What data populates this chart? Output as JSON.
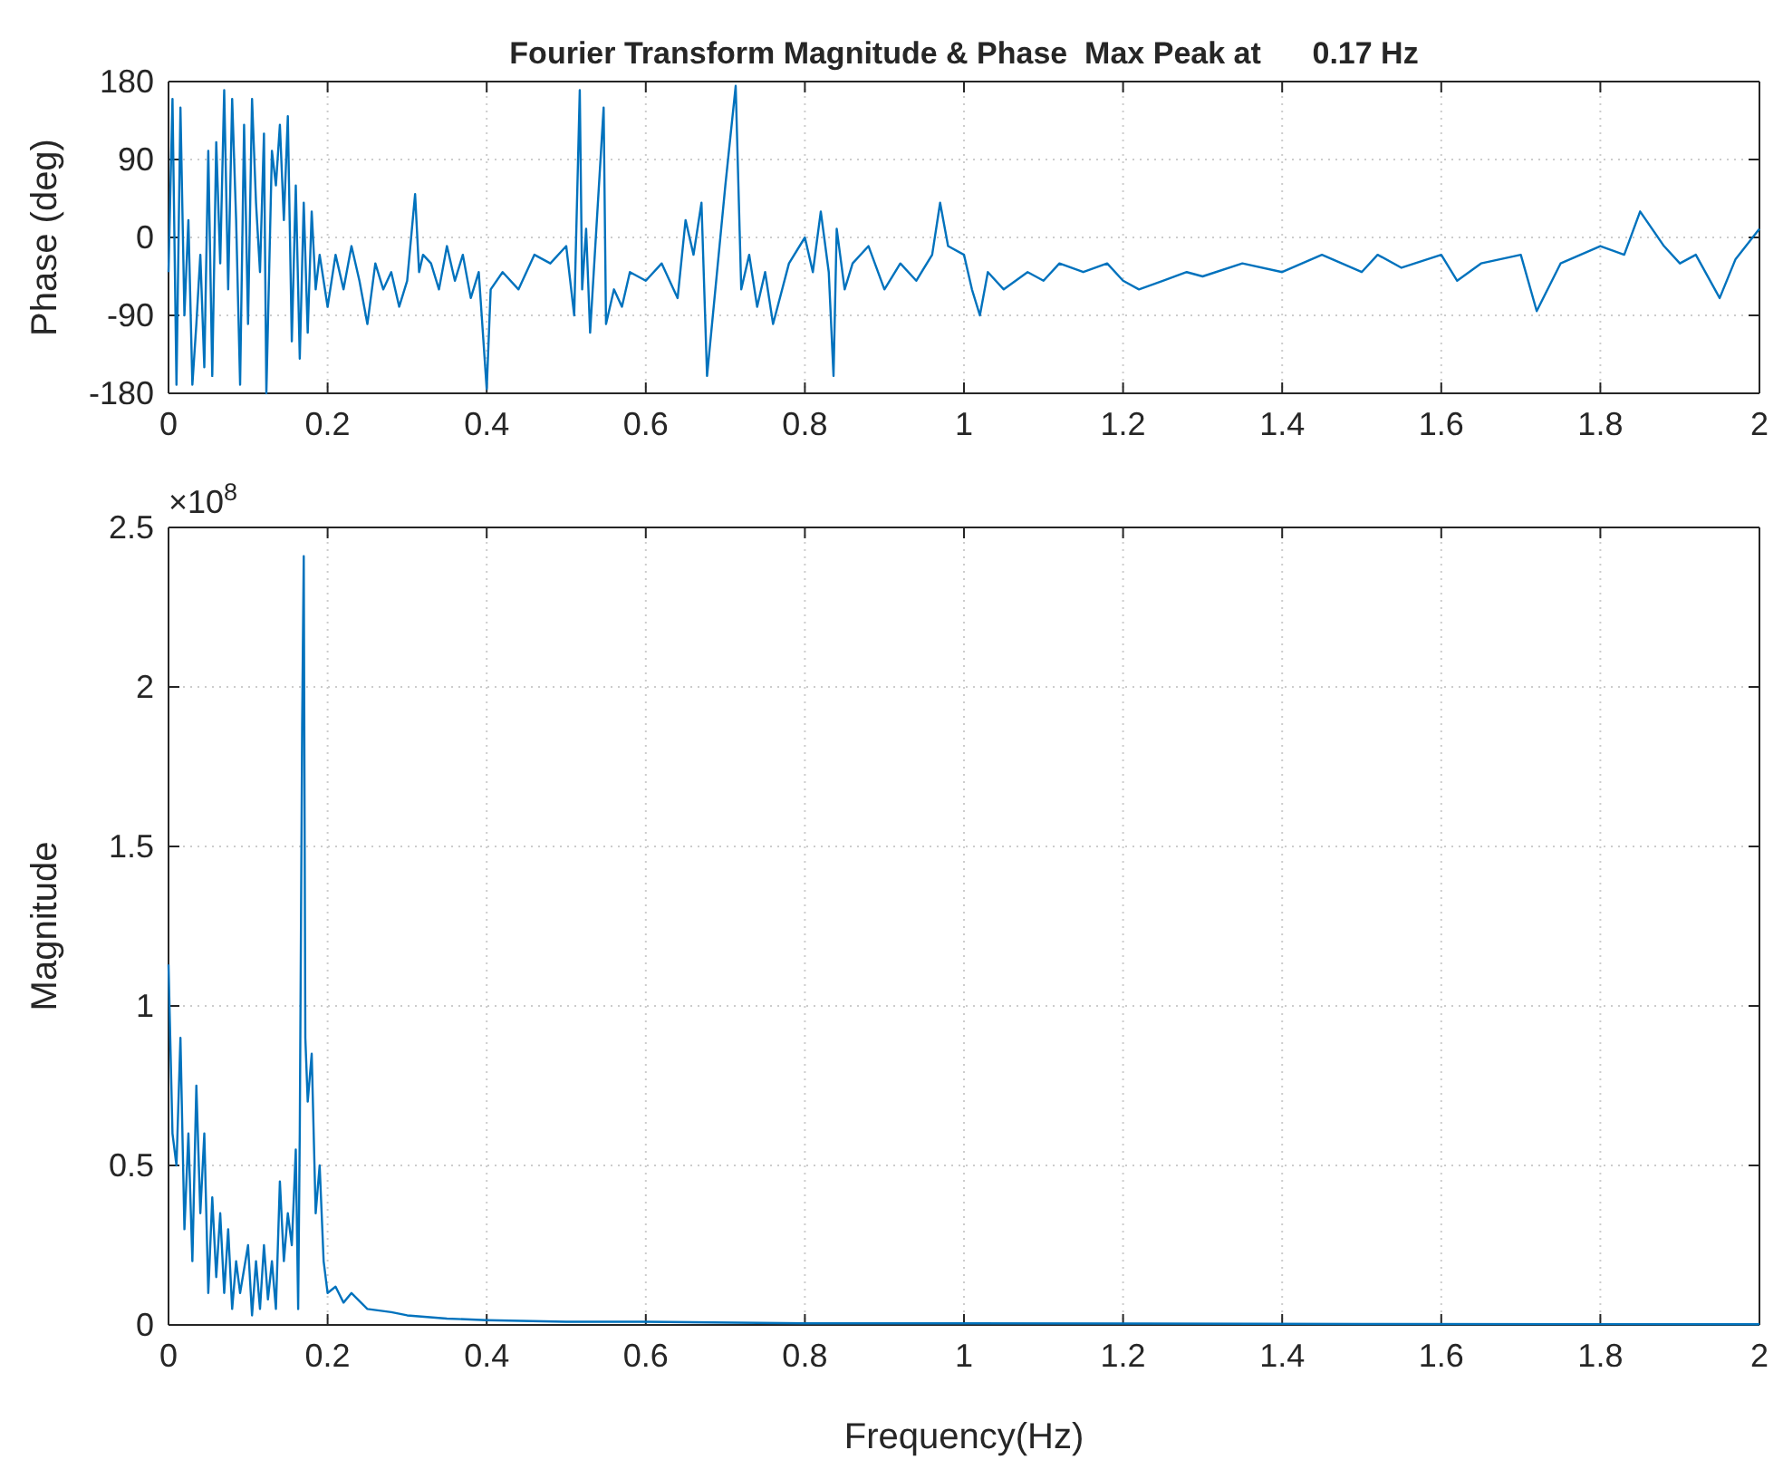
{
  "chart_data": [
    {
      "type": "line",
      "title": "Fourier Transform Magnitude & Phase  Max Peak at      0.17 Hz",
      "ylabel": "Phase (deg)",
      "xlim": [
        0,
        2
      ],
      "xticks": [
        0,
        0.2,
        0.4,
        0.6,
        0.8,
        1,
        1.2,
        1.4,
        1.6,
        1.8,
        2
      ],
      "ylim": [
        -180,
        180
      ],
      "yticks": [
        -180,
        -90,
        0,
        90,
        180
      ],
      "grid": true,
      "series": [
        {
          "color": "#0072bd",
          "x": [
            0,
            0.005,
            0.01,
            0.015,
            0.02,
            0.025,
            0.03,
            0.035,
            0.04,
            0.045,
            0.05,
            0.055,
            0.06,
            0.065,
            0.07,
            0.075,
            0.08,
            0.085,
            0.09,
            0.095,
            0.1,
            0.105,
            0.11,
            0.115,
            0.12,
            0.123,
            0.13,
            0.135,
            0.14,
            0.145,
            0.15,
            0.155,
            0.16,
            0.165,
            0.17,
            0.175,
            0.18,
            0.185,
            0.19,
            0.2,
            0.21,
            0.22,
            0.23,
            0.24,
            0.25,
            0.26,
            0.27,
            0.28,
            0.29,
            0.3,
            0.31,
            0.315,
            0.32,
            0.33,
            0.34,
            0.35,
            0.36,
            0.37,
            0.38,
            0.39,
            0.4,
            0.405,
            0.42,
            0.44,
            0.46,
            0.48,
            0.5,
            0.51,
            0.517,
            0.52,
            0.525,
            0.53,
            0.547,
            0.55,
            0.56,
            0.57,
            0.58,
            0.6,
            0.62,
            0.64,
            0.65,
            0.66,
            0.67,
            0.677,
            0.7,
            0.713,
            0.72,
            0.73,
            0.74,
            0.75,
            0.76,
            0.78,
            0.8,
            0.81,
            0.82,
            0.83,
            0.836,
            0.84,
            0.85,
            0.86,
            0.88,
            0.9,
            0.92,
            0.94,
            0.96,
            0.97,
            0.98,
            1,
            1.01,
            1.02,
            1.03,
            1.05,
            1.08,
            1.1,
            1.12,
            1.15,
            1.18,
            1.2,
            1.22,
            1.25,
            1.28,
            1.3,
            1.35,
            1.4,
            1.45,
            1.5,
            1.52,
            1.55,
            1.6,
            1.62,
            1.65,
            1.7,
            1.72,
            1.75,
            1.8,
            1.83,
            1.85,
            1.88,
            1.9,
            1.92,
            1.95,
            1.97,
            2
          ],
          "values": [
            -40,
            160,
            -170,
            150,
            -90,
            20,
            -170,
            -100,
            -20,
            -150,
            100,
            -160,
            110,
            -30,
            170,
            -60,
            160,
            20,
            -170,
            130,
            -100,
            160,
            40,
            -40,
            120,
            -180,
            100,
            60,
            130,
            20,
            140,
            -120,
            60,
            -140,
            40,
            -110,
            30,
            -60,
            -20,
            -80,
            -20,
            -60,
            -10,
            -50,
            -100,
            -30,
            -60,
            -40,
            -80,
            -50,
            50,
            -40,
            -20,
            -30,
            -60,
            -10,
            -50,
            -20,
            -70,
            -40,
            -175,
            -60,
            -40,
            -60,
            -20,
            -30,
            -10,
            -90,
            170,
            -60,
            10,
            -110,
            150,
            -100,
            -60,
            -80,
            -40,
            -50,
            -30,
            -70,
            20,
            -20,
            40,
            -160,
            60,
            175,
            -60,
            -20,
            -80,
            -40,
            -100,
            -30,
            0,
            -40,
            30,
            -40,
            -160,
            10,
            -60,
            -30,
            -10,
            -60,
            -30,
            -50,
            -20,
            40,
            -10,
            -20,
            -60,
            -90,
            -40,
            -60,
            -40,
            -50,
            -30,
            -40,
            -30,
            -50,
            -60,
            -50,
            -40,
            -45,
            -30,
            -40,
            -20,
            -40,
            -20,
            -35,
            -20,
            -50,
            -30,
            -20,
            -85,
            -30,
            -10,
            -20,
            30,
            -10,
            -30,
            -20,
            -70,
            -25,
            10
          ]
        }
      ]
    },
    {
      "type": "line",
      "xlabel": "Frequency(Hz)",
      "ylabel": "Magnitude",
      "annotations": [
        "×10$^{8}$"
      ],
      "xlim": [
        0,
        2
      ],
      "xticks": [
        0,
        0.2,
        0.4,
        0.6,
        0.8,
        1,
        1.2,
        1.4,
        1.6,
        1.8,
        2
      ],
      "ylim": [
        0,
        2.5
      ],
      "yticks": [
        0,
        0.5,
        1,
        1.5,
        2,
        2.5
      ],
      "grid": true,
      "series": [
        {
          "color": "#0072bd",
          "x": [
            0,
            0.005,
            0.01,
            0.015,
            0.02,
            0.025,
            0.03,
            0.035,
            0.04,
            0.045,
            0.05,
            0.055,
            0.06,
            0.065,
            0.07,
            0.075,
            0.08,
            0.085,
            0.09,
            0.1,
            0.105,
            0.11,
            0.115,
            0.12,
            0.125,
            0.13,
            0.135,
            0.14,
            0.145,
            0.15,
            0.155,
            0.16,
            0.163,
            0.165,
            0.168,
            0.17,
            0.172,
            0.175,
            0.18,
            0.185,
            0.19,
            0.195,
            0.2,
            0.21,
            0.22,
            0.23,
            0.25,
            0.28,
            0.3,
            0.35,
            0.4,
            0.5,
            0.6,
            0.8,
            1,
            1.5,
            2
          ],
          "values": [
            1.13,
            0.6,
            0.5,
            0.9,
            0.3,
            0.6,
            0.2,
            0.75,
            0.35,
            0.6,
            0.1,
            0.4,
            0.15,
            0.35,
            0.1,
            0.3,
            0.05,
            0.2,
            0.1,
            0.25,
            0.03,
            0.2,
            0.05,
            0.25,
            0.08,
            0.2,
            0.05,
            0.45,
            0.2,
            0.35,
            0.25,
            0.55,
            0.05,
            0.6,
            1.88,
            2.41,
            0.9,
            0.7,
            0.85,
            0.35,
            0.5,
            0.2,
            0.1,
            0.12,
            0.07,
            0.1,
            0.05,
            0.04,
            0.03,
            0.02,
            0.015,
            0.01,
            0.01,
            0.005,
            0.005,
            0.003,
            0.002
          ]
        }
      ]
    }
  ]
}
